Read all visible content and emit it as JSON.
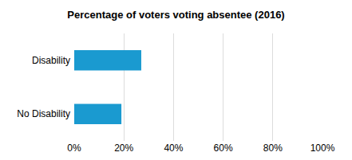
{
  "chart_data": {
    "type": "bar",
    "title": "Percentage of voters voting absentee (2016)",
    "orientation": "horizontal",
    "categories": [
      "Disability",
      "No Disability"
    ],
    "values": [
      27,
      19
    ],
    "color": "#1a9ad0",
    "xlim": [
      0,
      100
    ],
    "xticks": [
      {
        "value": 0,
        "label": "0%"
      },
      {
        "value": 20,
        "label": "20%"
      },
      {
        "value": 40,
        "label": "40%"
      },
      {
        "value": 60,
        "label": "60%"
      },
      {
        "value": 80,
        "label": "80%"
      },
      {
        "value": 100,
        "label": "100%"
      }
    ],
    "grid": true
  }
}
